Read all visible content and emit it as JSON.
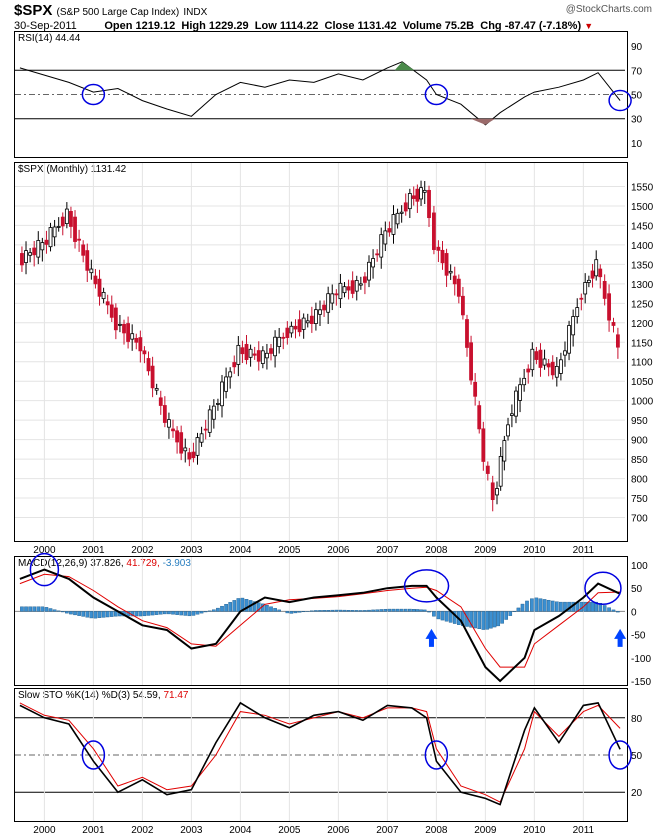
{
  "header": {
    "symbol": "$SPX",
    "name": "(S&P 500 Large Cap Index)",
    "exchange": "INDX",
    "date": "30-Sep-2011",
    "open": "Open 1219.12",
    "high": "High 1229.29",
    "low": "Low 1114.22",
    "close": "Close 1131.42",
    "volume": "Volume 75.2B",
    "chg": "Chg -87.47 (-7.18%)",
    "watermark": "@StockCharts.com"
  },
  "colors": {
    "up": "#000000",
    "down": "#c8102e",
    "ma_red": "#e00000",
    "hist_blue": "#3b8fd0",
    "circle": "#0000e0",
    "arrow": "#0044ff",
    "rsi_up": "#4a8a4a",
    "rsi_down": "#9a6a6a"
  },
  "panels": {
    "rsi_label": "RSI(14) 44.44",
    "price_label": "$SPX (Monthly) 1131.42",
    "macd_label_main": "MACD(12,26,9) 37.826,",
    "macd_label_sig": "41.729,",
    "macd_label_hist": "-3.903",
    "sto_label_main": "Slow STO %K(14) %D(3) 54.59,",
    "sto_label_sig": "71.47"
  },
  "x_ticks": [
    "2000",
    "2001",
    "2002",
    "2003",
    "2004",
    "2005",
    "2006",
    "2007",
    "2008",
    "2009",
    "2010",
    "2011"
  ],
  "chart_data": [
    {
      "type": "line",
      "name": "RSI(14)",
      "ylim": [
        0,
        100
      ],
      "y_ticks": [
        90,
        70,
        50,
        30,
        10
      ],
      "x": [
        1999.5,
        2000,
        2000.5,
        2001,
        2001.5,
        2002,
        2002.5,
        2003,
        2003.5,
        2004,
        2004.5,
        2005,
        2005.5,
        2006,
        2006.5,
        2007,
        2007.3,
        2007.8,
        2008,
        2008.5,
        2009,
        2009.3,
        2009.8,
        2010,
        2010.5,
        2011,
        2011.3,
        2011.75
      ],
      "y": [
        72,
        66,
        60,
        52,
        55,
        45,
        38,
        32,
        50,
        60,
        56,
        62,
        60,
        67,
        62,
        72,
        77,
        62,
        50,
        42,
        25,
        35,
        48,
        52,
        56,
        62,
        68,
        45
      ]
    },
    {
      "type": "line",
      "name": "$SPX (Monthly)",
      "ylim": [
        650,
        1600
      ],
      "y_ticks": [
        700,
        750,
        800,
        850,
        900,
        950,
        1000,
        1050,
        1100,
        1150,
        1200,
        1250,
        1300,
        1350,
        1400,
        1450,
        1500,
        1550
      ],
      "x": [
        1999.5,
        2000,
        2000.5,
        2001,
        2001.5,
        2002,
        2002.5,
        2003,
        2003.5,
        2004,
        2004.5,
        2005,
        2005.5,
        2006,
        2006.5,
        2007,
        2007.5,
        2007.8,
        2008,
        2008.5,
        2009,
        2009.2,
        2009.5,
        2010,
        2010.5,
        2011,
        2011.3,
        2011.75
      ],
      "y": [
        1360,
        1400,
        1480,
        1320,
        1200,
        1140,
        950,
        850,
        980,
        1130,
        1110,
        1180,
        1210,
        1280,
        1300,
        1430,
        1520,
        1540,
        1400,
        1280,
        850,
        740,
        950,
        1120,
        1070,
        1280,
        1350,
        1131.42
      ]
    },
    {
      "type": "line",
      "name": "MACD(12,26,9)",
      "ylim": [
        -150,
        100
      ],
      "y_ticks": [
        100,
        50,
        0,
        -50,
        -100,
        -150
      ],
      "x": [
        1999.5,
        2000,
        2000.5,
        2001,
        2001.5,
        2002,
        2002.5,
        2003,
        2003.5,
        2004,
        2004.5,
        2005,
        2005.5,
        2006,
        2006.5,
        2007,
        2007.5,
        2007.8,
        2008,
        2008.5,
        2009,
        2009.3,
        2009.8,
        2010,
        2010.5,
        2011,
        2011.3,
        2011.75
      ],
      "series": [
        {
          "name": "MACD",
          "values": [
            70,
            90,
            70,
            30,
            0,
            -30,
            -40,
            -80,
            -70,
            0,
            30,
            20,
            30,
            35,
            40,
            50,
            55,
            55,
            30,
            -20,
            -120,
            -150,
            -100,
            -40,
            -10,
            30,
            60,
            37.826
          ]
        },
        {
          "name": "Signal",
          "values": [
            60,
            80,
            75,
            45,
            10,
            -20,
            -35,
            -70,
            -75,
            -30,
            15,
            25,
            28,
            32,
            38,
            45,
            50,
            52,
            45,
            10,
            -80,
            -120,
            -120,
            -70,
            -30,
            10,
            40,
            41.729
          ]
        },
        {
          "name": "Histogram",
          "values": [
            10,
            10,
            -5,
            -15,
            -10,
            -10,
            -5,
            -10,
            5,
            30,
            15,
            -5,
            2,
            3,
            2,
            5,
            5,
            3,
            -15,
            -30,
            -40,
            -30,
            20,
            30,
            20,
            20,
            20,
            -3.903
          ]
        }
      ]
    },
    {
      "type": "line",
      "name": "Slow STO %K(14) %D(3)",
      "ylim": [
        0,
        100
      ],
      "y_ticks": [
        80,
        50,
        20
      ],
      "x": [
        1999.5,
        2000,
        2000.5,
        2001,
        2001.5,
        2002,
        2002.5,
        2003,
        2003.5,
        2004,
        2004.5,
        2005,
        2005.5,
        2006,
        2006.5,
        2007,
        2007.5,
        2007.8,
        2008,
        2008.5,
        2009,
        2009.3,
        2009.8,
        2010,
        2010.5,
        2011,
        2011.3,
        2011.75
      ],
      "series": [
        {
          "name": "%K",
          "values": [
            90,
            80,
            75,
            45,
            20,
            30,
            18,
            22,
            60,
            92,
            80,
            72,
            82,
            85,
            78,
            90,
            88,
            80,
            45,
            20,
            15,
            10,
            70,
            88,
            60,
            90,
            92,
            54.59
          ]
        },
        {
          "name": "%D",
          "values": [
            92,
            82,
            78,
            55,
            25,
            32,
            22,
            25,
            50,
            85,
            82,
            75,
            80,
            85,
            80,
            88,
            88,
            85,
            55,
            25,
            18,
            12,
            55,
            85,
            65,
            85,
            90,
            71.47
          ]
        }
      ]
    }
  ]
}
